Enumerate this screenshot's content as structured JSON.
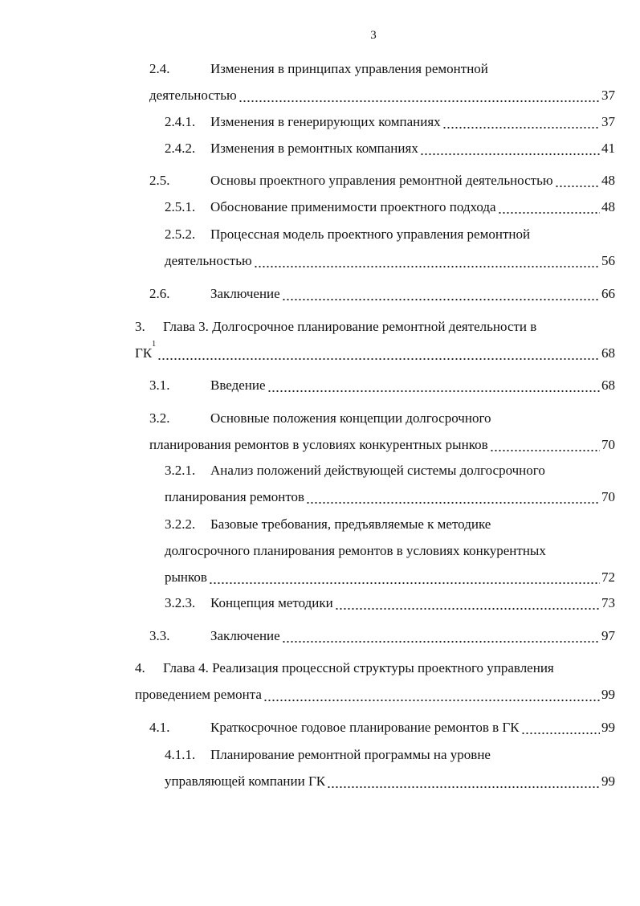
{
  "page_number": 3,
  "entries": [
    {
      "number": "2.4.",
      "lines": [
        "Изменения в принципах управления ремонтной",
        "деятельностью"
      ],
      "page": 37
    },
    {
      "number": "2.4.1.",
      "lines": [
        "Изменения в генерирующих компаниях"
      ],
      "page": 37
    },
    {
      "number": "2.4.2.",
      "lines": [
        "Изменения в ремонтных компаниях"
      ],
      "page": 41
    },
    {
      "number": "2.5.",
      "lines": [
        "Основы проектного управления ремонтной деятельностью"
      ],
      "page": 48
    },
    {
      "number": "2.5.1.",
      "lines": [
        "Обоснование применимости проектного подхода"
      ],
      "page": 48
    },
    {
      "number": "2.5.2.",
      "lines": [
        "Процессная модель проектного управления ремонтной",
        "деятельностью"
      ],
      "page": 56
    },
    {
      "number": "2.6.",
      "lines": [
        "Заключение"
      ],
      "page": 66
    },
    {
      "number": "3.",
      "lines": [
        "Глава 3. Долгосрочное планирование ремонтной деятельности в",
        "ГК"
      ],
      "footnote_mark": "1",
      "page": 68
    },
    {
      "number": "3.1.",
      "lines": [
        "Введение"
      ],
      "page": 68
    },
    {
      "number": "3.2.",
      "lines": [
        "Основные положения концепции долгосрочного",
        "планирования ремонтов в условиях конкурентных рынков"
      ],
      "page": 70
    },
    {
      "number": "3.2.1.",
      "lines": [
        "Анализ положений действующей системы долгосрочного",
        "планирования ремонтов"
      ],
      "page": 70
    },
    {
      "number": "3.2.2.",
      "lines": [
        "Базовые требования, предъявляемые к методике",
        "долгосрочного планирования ремонтов в условиях конкурентных",
        "рынков"
      ],
      "page": 72
    },
    {
      "number": "3.2.3.",
      "lines": [
        "Концепция методики"
      ],
      "page": 73
    },
    {
      "number": "3.3.",
      "lines": [
        "Заключение"
      ],
      "page": 97
    },
    {
      "number": "4.",
      "lines": [
        "Глава 4. Реализация процессной структуры проектного управления",
        "проведением ремонта"
      ],
      "page": 99
    },
    {
      "number": "4.1.",
      "lines": [
        "Краткосрочное годовое планирование ремонтов в ГК"
      ],
      "page": 99
    },
    {
      "number": "4.1.1.",
      "lines": [
        "Планирование ремонтной программы на уровне",
        "управляющей компании ГК"
      ],
      "page": 99
    }
  ]
}
